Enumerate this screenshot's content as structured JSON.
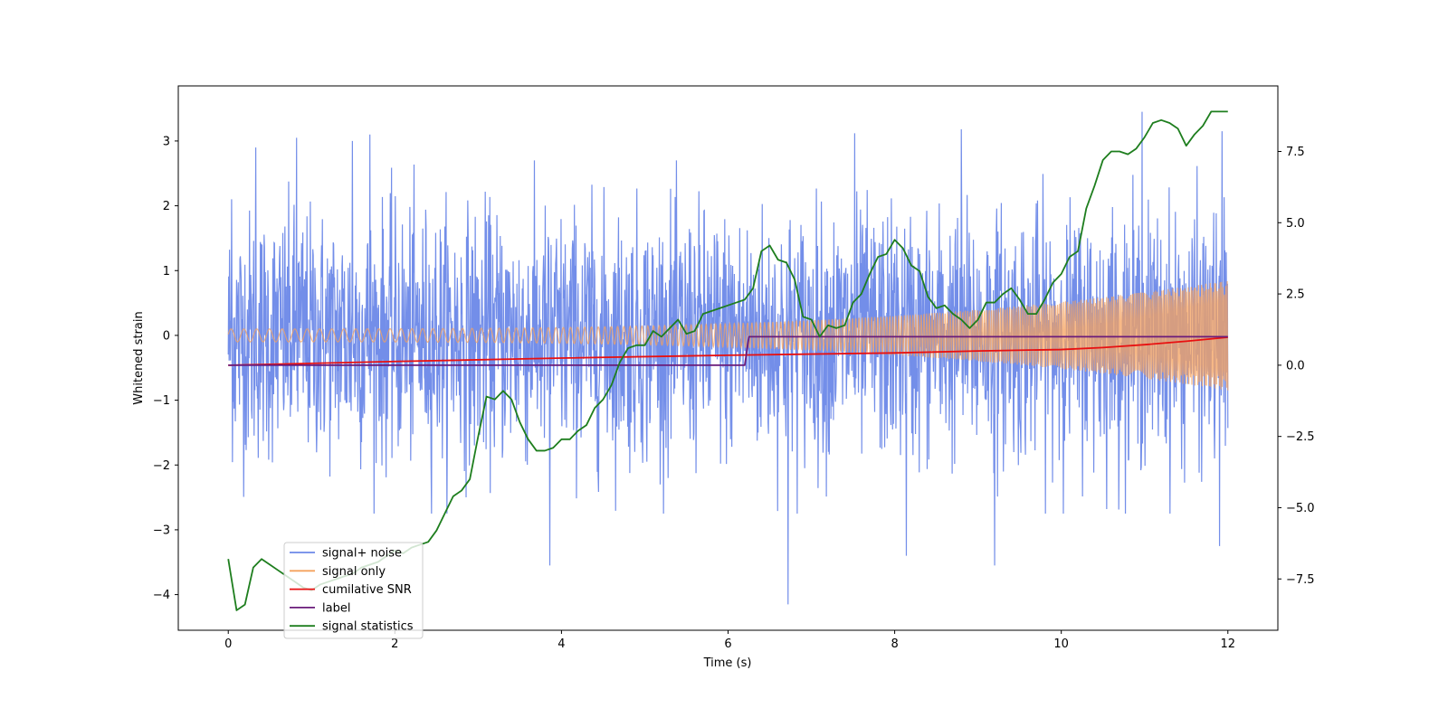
{
  "chart_data": {
    "type": "line",
    "title": "",
    "xlabel": "Time (s)",
    "ylabel": "Whitened strain",
    "y2label": "",
    "xlim": [
      -0.6,
      12.6
    ],
    "ylim": [
      -4.55,
      3.85
    ],
    "y2lim": [
      -9.3,
      9.8
    ],
    "x_ticks": [
      0,
      2,
      4,
      6,
      8,
      10,
      12
    ],
    "x_tick_labels": [
      "0",
      "2",
      "4",
      "6",
      "8",
      "10",
      "12"
    ],
    "y_ticks": [
      -4,
      -3,
      -2,
      -1,
      0,
      1,
      2,
      3
    ],
    "y_tick_labels": [
      "−4",
      "−3",
      "−2",
      "−1",
      "0",
      "1",
      "2",
      "3"
    ],
    "y2_ticks": [
      -7.5,
      -5.0,
      -2.5,
      0.0,
      2.5,
      5.0,
      7.5
    ],
    "y2_tick_labels": [
      "−7.5",
      "−5.0",
      "−2.5",
      "0.0",
      "2.5",
      "5.0",
      "7.5"
    ],
    "grid": false,
    "legend_position": "lower-left",
    "series": [
      {
        "name": "signal+ noise",
        "color": "#6b88e8",
        "axis": "left",
        "description_range": [
          -4.15,
          3.15
        ],
        "x_range": [
          0,
          12
        ],
        "noise_std": 0.95,
        "extremes": [
          [
            0.04,
            2.1
          ],
          [
            0.33,
            2.9
          ],
          [
            0.82,
            3.05
          ],
          [
            1.49,
            3.0
          ],
          [
            1.7,
            3.1
          ],
          [
            6.72,
            -4.15
          ],
          [
            7.52,
            3.12
          ],
          [
            8.8,
            3.18
          ],
          [
            9.2,
            -3.55
          ],
          [
            10.97,
            3.45
          ],
          [
            11.93,
            3.15
          ],
          [
            11.9,
            -3.25
          ],
          [
            3.86,
            -3.55
          ],
          [
            8.14,
            -3.4
          ]
        ]
      },
      {
        "name": "signal only",
        "color": "#f5a25d",
        "axis": "left",
        "description": "chirp with amplitude growing from about 0.1 to 0.85 between t=0 and t=12",
        "amplitude_start": 0.1,
        "amplitude_end": 0.85,
        "x_range": [
          0,
          12
        ]
      },
      {
        "name": "cumilative SNR",
        "color": "#e81010",
        "axis": "right",
        "x": [
          0,
          2,
          4,
          6,
          8,
          9,
          10,
          10.5,
          11,
          11.5,
          12
        ],
        "y": [
          0.0,
          0.13,
          0.25,
          0.35,
          0.43,
          0.5,
          0.55,
          0.62,
          0.72,
          0.84,
          0.98
        ]
      },
      {
        "name": "label",
        "color": "#6a1b7a",
        "axis": "right",
        "x": [
          0,
          6.2,
          6.25,
          12
        ],
        "y": [
          0,
          0,
          1,
          1
        ]
      },
      {
        "name": "signal statistics",
        "color": "#1e7e1e",
        "axis": "right",
        "x": [
          0,
          0.1,
          0.2,
          0.3,
          0.4,
          0.5,
          0.6,
          0.7,
          0.8,
          0.9,
          1.0,
          1.1,
          1.2,
          1.3,
          1.4,
          1.5,
          1.6,
          1.7,
          1.8,
          1.9,
          2.0,
          2.1,
          2.2,
          2.3,
          2.4,
          2.5,
          2.6,
          2.7,
          2.8,
          2.9,
          3.0,
          3.1,
          3.2,
          3.3,
          3.4,
          3.5,
          3.6,
          3.7,
          3.8,
          3.9,
          4.0,
          4.1,
          4.2,
          4.3,
          4.4,
          4.5,
          4.6,
          4.7,
          4.8,
          4.9,
          5.0,
          5.1,
          5.2,
          5.3,
          5.4,
          5.5,
          5.6,
          5.7,
          5.8,
          5.9,
          6.0,
          6.1,
          6.2,
          6.3,
          6.4,
          6.5,
          6.6,
          6.7,
          6.8,
          6.9,
          7.0,
          7.1,
          7.2,
          7.3,
          7.4,
          7.5,
          7.6,
          7.7,
          7.8,
          7.9,
          8.0,
          8.1,
          8.2,
          8.3,
          8.4,
          8.5,
          8.6,
          8.7,
          8.8,
          8.9,
          9.0,
          9.1,
          9.2,
          9.3,
          9.4,
          9.5,
          9.6,
          9.7,
          9.8,
          9.9,
          10.0,
          10.1,
          10.2,
          10.3,
          10.4,
          10.5,
          10.6,
          10.7,
          10.8,
          10.9,
          11.0,
          11.1,
          11.2,
          11.3,
          11.4,
          11.5,
          11.6,
          11.7,
          11.8,
          11.9,
          12.0
        ],
        "y": [
          -6.8,
          -8.6,
          -8.4,
          -7.1,
          -6.8,
          -7.0,
          -7.2,
          -7.4,
          -7.6,
          -7.8,
          -7.9,
          -7.7,
          -7.6,
          -7.5,
          -7.4,
          -7.3,
          -7.1,
          -7.0,
          -6.9,
          -6.7,
          -6.5,
          -6.6,
          -6.4,
          -6.3,
          -6.2,
          -5.8,
          -5.2,
          -4.6,
          -4.4,
          -4.0,
          -2.5,
          -1.1,
          -1.2,
          -0.9,
          -1.2,
          -2.0,
          -2.6,
          -3.0,
          -3.0,
          -2.9,
          -2.6,
          -2.6,
          -2.3,
          -2.1,
          -1.5,
          -1.2,
          -0.7,
          0.1,
          0.6,
          0.7,
          0.7,
          1.2,
          1.0,
          1.3,
          1.6,
          1.1,
          1.2,
          1.8,
          1.9,
          2.0,
          2.1,
          2.2,
          2.3,
          2.7,
          4.0,
          4.2,
          3.7,
          3.6,
          3.0,
          1.7,
          1.6,
          1.0,
          1.4,
          1.3,
          1.4,
          2.2,
          2.5,
          3.2,
          3.8,
          3.9,
          4.4,
          4.1,
          3.5,
          3.3,
          2.4,
          2.0,
          2.1,
          1.8,
          1.6,
          1.3,
          1.6,
          2.2,
          2.2,
          2.5,
          2.7,
          2.3,
          1.8,
          1.8,
          2.3,
          2.9,
          3.2,
          3.8,
          4.0,
          5.5,
          6.3,
          7.2,
          7.5,
          7.5,
          7.4,
          7.6,
          8.0,
          8.5,
          8.6,
          8.5,
          8.3,
          7.7,
          8.1,
          8.4,
          8.9,
          8.9,
          8.9
        ]
      }
    ]
  }
}
